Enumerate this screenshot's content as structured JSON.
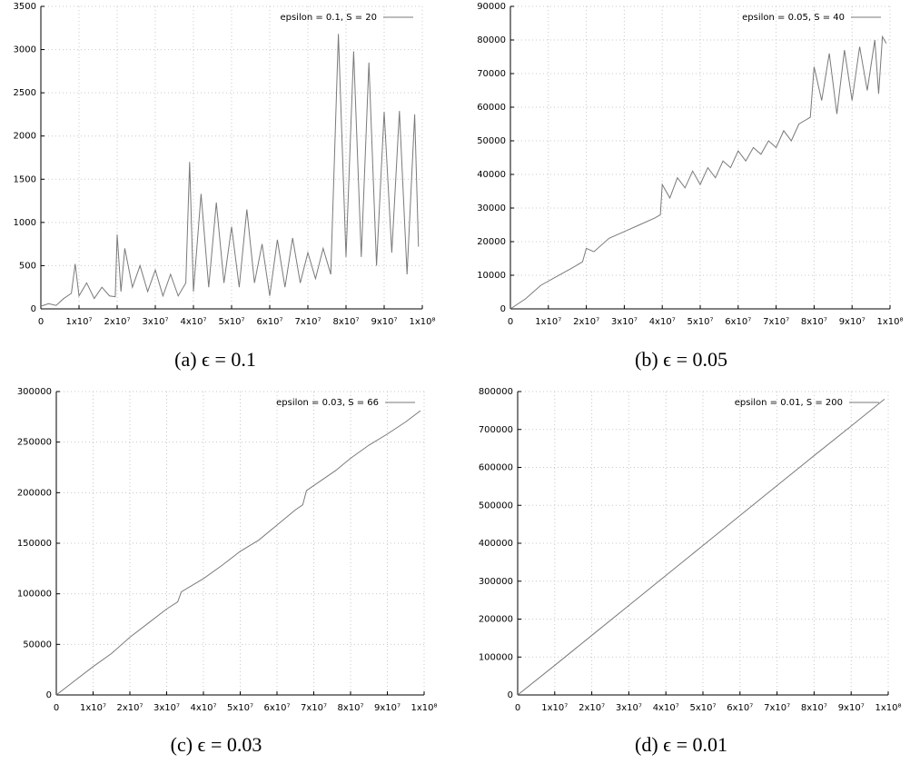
{
  "chart_data": [
    {
      "type": "line",
      "caption": "(a) ϵ = 0.1",
      "x": [
        0,
        2000000,
        4000000,
        6000000,
        8000000,
        9000000,
        10000000,
        12000000,
        14000000,
        16000000,
        18000000,
        19500000,
        20000000,
        21000000,
        22000000,
        24000000,
        26000000,
        28000000,
        30000000,
        32000000,
        34000000,
        36000000,
        38000000,
        39000000,
        40000000,
        42000000,
        44000000,
        46000000,
        48000000,
        50000000,
        52000000,
        54000000,
        56000000,
        58000000,
        60000000,
        62000000,
        64000000,
        66000000,
        68000000,
        70000000,
        72000000,
        74000000,
        76000000,
        78000000,
        80000000,
        82000000,
        84000000,
        86000000,
        88000000,
        90000000,
        92000000,
        94000000,
        96000000,
        98000000,
        99000000
      ],
      "series": [
        {
          "name": "epsilon = 0.1, S = 20",
          "color": "#7a7a7a",
          "values": [
            30,
            60,
            40,
            120,
            180,
            520,
            150,
            300,
            120,
            250,
            150,
            140,
            860,
            200,
            700,
            250,
            500,
            200,
            450,
            150,
            400,
            150,
            300,
            1700,
            200,
            1330,
            250,
            1230,
            300,
            950,
            250,
            1150,
            300,
            750,
            150,
            800,
            250,
            820,
            300,
            650,
            350,
            700,
            400,
            3180,
            600,
            2980,
            600,
            2850,
            500,
            2280,
            650,
            2290,
            400,
            2250,
            720
          ]
        }
      ],
      "xlim": [
        0,
        100000000
      ],
      "xticks": [
        0,
        {
          "value": 10000000,
          "label": "1x10⁷"
        },
        {
          "value": 20000000,
          "label": "2x10⁷"
        },
        {
          "value": 30000000,
          "label": "3x10⁷"
        },
        {
          "value": 40000000,
          "label": "4x10⁷"
        },
        {
          "value": 50000000,
          "label": "5x10⁷"
        },
        {
          "value": 60000000,
          "label": "6x10⁷"
        },
        {
          "value": 70000000,
          "label": "7x10⁷"
        },
        {
          "value": 80000000,
          "label": "8x10⁷"
        },
        {
          "value": 90000000,
          "label": "9x10⁷"
        },
        {
          "value": 100000000,
          "label": "1x10⁸"
        }
      ],
      "ylim": [
        0,
        3500
      ],
      "yticks": [
        0,
        500,
        1000,
        1500,
        2000,
        2500,
        3000,
        3500
      ],
      "grid": true,
      "legend": "top-right"
    },
    {
      "type": "line",
      "caption": "(b) ϵ = 0.05",
      "x": [
        0,
        4000000,
        8000000,
        12000000,
        16000000,
        19000000,
        20000000,
        22000000,
        26000000,
        30000000,
        34000000,
        38000000,
        39500000,
        40000000,
        42000000,
        44000000,
        46000000,
        48000000,
        50000000,
        52000000,
        54000000,
        56000000,
        58000000,
        60000000,
        62000000,
        64000000,
        66000000,
        68000000,
        70000000,
        72000000,
        74000000,
        76000000,
        79000000,
        80000000,
        82000000,
        84000000,
        86000000,
        88000000,
        90000000,
        92000000,
        94000000,
        96000000,
        97000000,
        98000000,
        99000000
      ],
      "series": [
        {
          "name": "epsilon = 0.05, S = 40",
          "color": "#7a7a7a",
          "values": [
            0,
            3000,
            7000,
            9500,
            12000,
            14000,
            18000,
            17000,
            21000,
            23000,
            25000,
            27000,
            28000,
            37000,
            33000,
            39000,
            36000,
            41000,
            37000,
            42000,
            39000,
            44000,
            42000,
            47000,
            44000,
            48000,
            46000,
            50000,
            48000,
            53000,
            50000,
            55000,
            57000,
            72000,
            62000,
            76000,
            58000,
            77000,
            62000,
            78000,
            65000,
            80000,
            64000,
            81000,
            79000
          ]
        }
      ],
      "xlim": [
        0,
        100000000
      ],
      "xticks": [
        0,
        {
          "value": 10000000,
          "label": "1x10⁷"
        },
        {
          "value": 20000000,
          "label": "2x10⁷"
        },
        {
          "value": 30000000,
          "label": "3x10⁷"
        },
        {
          "value": 40000000,
          "label": "4x10⁷"
        },
        {
          "value": 50000000,
          "label": "5x10⁷"
        },
        {
          "value": 60000000,
          "label": "6x10⁷"
        },
        {
          "value": 70000000,
          "label": "7x10⁷"
        },
        {
          "value": 80000000,
          "label": "8x10⁷"
        },
        {
          "value": 90000000,
          "label": "9x10⁷"
        },
        {
          "value": 100000000,
          "label": "1x10⁸"
        }
      ],
      "ylim": [
        0,
        90000
      ],
      "yticks": [
        0,
        10000,
        20000,
        30000,
        40000,
        50000,
        60000,
        70000,
        80000,
        90000
      ],
      "grid": true,
      "legend": "top-right"
    },
    {
      "type": "line",
      "caption": "(c) ϵ = 0.03",
      "x": [
        0,
        5000000,
        10000000,
        15000000,
        20000000,
        25000000,
        30000000,
        33000000,
        34000000,
        40000000,
        45000000,
        50000000,
        55000000,
        60000000,
        65000000,
        67000000,
        68000000,
        72000000,
        76000000,
        80000000,
        85000000,
        90000000,
        95000000,
        99000000
      ],
      "series": [
        {
          "name": "epsilon = 0.03, S = 66",
          "color": "#7a7a7a",
          "values": [
            0,
            14000,
            28000,
            41000,
            57000,
            71000,
            85000,
            92000,
            102000,
            115000,
            128000,
            142000,
            153000,
            168000,
            183000,
            188000,
            202000,
            212000,
            222000,
            234000,
            247000,
            258000,
            270000,
            281000
          ]
        }
      ],
      "xlim": [
        0,
        100000000
      ],
      "xticks": [
        0,
        {
          "value": 10000000,
          "label": "1x10⁷"
        },
        {
          "value": 20000000,
          "label": "2x10⁷"
        },
        {
          "value": 30000000,
          "label": "3x10⁷"
        },
        {
          "value": 40000000,
          "label": "4x10⁷"
        },
        {
          "value": 50000000,
          "label": "5x10⁷"
        },
        {
          "value": 60000000,
          "label": "6x10⁷"
        },
        {
          "value": 70000000,
          "label": "7x10⁷"
        },
        {
          "value": 80000000,
          "label": "8x10⁷"
        },
        {
          "value": 90000000,
          "label": "9x10⁷"
        },
        {
          "value": 100000000,
          "label": "1x10⁸"
        }
      ],
      "ylim": [
        0,
        300000
      ],
      "yticks": [
        0,
        50000,
        100000,
        150000,
        200000,
        250000,
        300000
      ],
      "grid": true,
      "legend": "top-right"
    },
    {
      "type": "line",
      "caption": "(d) ϵ = 0.01",
      "x": [
        0,
        10000000,
        20000000,
        30000000,
        40000000,
        50000000,
        60000000,
        70000000,
        80000000,
        90000000,
        99000000
      ],
      "series": [
        {
          "name": "epsilon = 0.01, S = 200",
          "color": "#7a7a7a",
          "values": [
            0,
            78000,
            157000,
            236000,
            315000,
            394000,
            473000,
            552000,
            631000,
            709000,
            780000
          ]
        }
      ],
      "xlim": [
        0,
        100000000
      ],
      "xticks": [
        0,
        {
          "value": 10000000,
          "label": "1x10⁷"
        },
        {
          "value": 20000000,
          "label": "2x10⁷"
        },
        {
          "value": 30000000,
          "label": "3x10⁷"
        },
        {
          "value": 40000000,
          "label": "4x10⁷"
        },
        {
          "value": 50000000,
          "label": "5x10⁷"
        },
        {
          "value": 60000000,
          "label": "6x10⁷"
        },
        {
          "value": 70000000,
          "label": "7x10⁷"
        },
        {
          "value": 80000000,
          "label": "8x10⁷"
        },
        {
          "value": 90000000,
          "label": "9x10⁷"
        },
        {
          "value": 100000000,
          "label": "1x10⁸"
        }
      ],
      "ylim": [
        0,
        800000
      ],
      "yticks": [
        0,
        100000,
        200000,
        300000,
        400000,
        500000,
        600000,
        700000,
        800000
      ],
      "grid": true,
      "legend": "top-right"
    }
  ]
}
